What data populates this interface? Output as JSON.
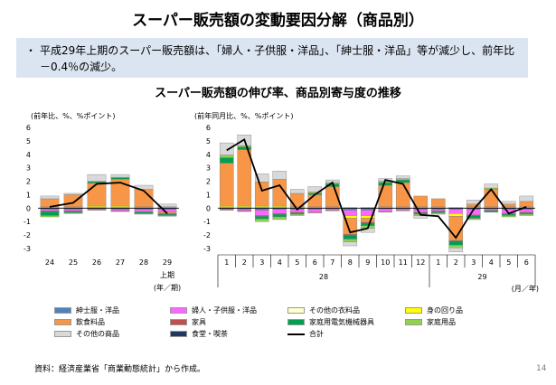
{
  "title": "スーパー販売額の変動要因分解（商品別）",
  "bullet": {
    "dot": "・",
    "text": "平成29年上期のスーパー販売額は、「婦人・子供服・洋品」、「紳士服・洋品」等が減少し、前年比－0.4％の減少。"
  },
  "subtitle": "スーパー販売額の伸び率、商品別寄与度の推移",
  "source": "資料：経済産業省「商業動態統計」から作成。",
  "page_number": "14",
  "colors": {
    "紳士服・洋品": "#4f81bd",
    "婦人・子供服・洋品": "#ff66ff",
    "その他の衣料品": "#ffffcc",
    "身の回り品": "#ffff00",
    "飲食料品": "#f79646",
    "家具": "#c0504d",
    "家庭用電気機械器具": "#00a050",
    "家庭用品": "#92d050",
    "その他の商品": "#d9d9d9",
    "食堂・喫茶": "#1f3864",
    "合計": "#000000"
  },
  "chart_data": [
    {
      "type": "bar",
      "stacked": true,
      "unit_label": "(前年比、%、%ポイント)",
      "ylim": [
        -3,
        6
      ],
      "yticks": [
        "-3",
        "-2",
        "-1",
        "0",
        "1",
        "2",
        "3",
        "4",
        "5",
        "6"
      ],
      "categories": [
        "24",
        "25",
        "26",
        "27",
        "28",
        "29"
      ],
      "x_sublabel": "上期",
      "x_unit": "(年／期)",
      "series": [
        {
          "name": "紳士服・洋品",
          "values": [
            -0.1,
            -0.1,
            -0.05,
            -0.1,
            -0.1,
            -0.1
          ]
        },
        {
          "name": "婦人・子供服・洋品",
          "values": [
            -0.1,
            -0.1,
            -0.05,
            -0.1,
            -0.15,
            -0.2
          ]
        },
        {
          "name": "その他の衣料品",
          "values": [
            0.05,
            0.05,
            0.05,
            0.05,
            0.05,
            0.05
          ]
        },
        {
          "name": "身の回り品",
          "values": [
            0.05,
            0.05,
            0.1,
            0.1,
            0.05,
            0.05
          ]
        },
        {
          "name": "飲食料品",
          "values": [
            0.6,
            0.9,
            1.7,
            2.0,
            1.3,
            -0.1
          ]
        },
        {
          "name": "家具",
          "values": [
            -0.05,
            -0.05,
            -0.05,
            -0.05,
            -0.05,
            -0.05
          ]
        },
        {
          "name": "家庭用電気機械器具",
          "values": [
            -0.3,
            -0.1,
            0.1,
            0.1,
            -0.1,
            -0.1
          ]
        },
        {
          "name": "家庭用品",
          "values": [
            -0.1,
            -0.05,
            0.05,
            0.05,
            -0.05,
            -0.05
          ]
        },
        {
          "name": "その他の商品",
          "values": [
            0.2,
            0.1,
            0.5,
            0.2,
            0.3,
            0.2
          ]
        },
        {
          "name": "食堂・喫茶",
          "values": [
            0,
            0,
            0,
            0,
            0,
            0
          ]
        }
      ],
      "total": [
        0.1,
        0.4,
        1.8,
        1.9,
        1.3,
        -0.4
      ]
    },
    {
      "type": "bar",
      "stacked": true,
      "unit_label": "(前年同月比、%、%ポイント)",
      "ylim": [
        -3,
        6
      ],
      "yticks": [
        "-3",
        "-2",
        "-1",
        "0",
        "1",
        "2",
        "3",
        "4",
        "5",
        "6"
      ],
      "categories": [
        "1",
        "2",
        "3",
        "4",
        "5",
        "6",
        "7",
        "8",
        "9",
        "10",
        "11",
        "12",
        "1",
        "2",
        "3",
        "4",
        "5",
        "6"
      ],
      "year_labels": [
        "28",
        "29"
      ],
      "x_unit": "(月／年)",
      "series": [
        {
          "name": "紳士服・洋品",
          "values": [
            -0.05,
            -0.1,
            -0.15,
            -0.1,
            -0.1,
            -0.1,
            -0.05,
            -0.15,
            -0.15,
            -0.05,
            -0.05,
            -0.1,
            -0.1,
            -0.1,
            -0.1,
            -0.05,
            -0.1,
            -0.1
          ]
        },
        {
          "name": "婦人・子供服・洋品",
          "values": [
            -0.05,
            -0.1,
            -0.4,
            -0.3,
            -0.2,
            -0.2,
            -0.1,
            -0.4,
            -0.4,
            -0.2,
            -0.1,
            -0.2,
            -0.1,
            -0.3,
            -0.4,
            -0.1,
            -0.3,
            -0.2
          ]
        },
        {
          "name": "その他の衣料品",
          "values": [
            0.05,
            0.05,
            0.05,
            0.05,
            0.05,
            0.05,
            0.05,
            0.05,
            0.05,
            0.05,
            0.05,
            0.05,
            0.05,
            0.05,
            0.05,
            0.05,
            0.05,
            0.05
          ]
        },
        {
          "name": "身の回り品",
          "values": [
            0.1,
            0.1,
            0.1,
            0.1,
            0.05,
            0.05,
            0.05,
            -0.2,
            -0.2,
            0.05,
            0.05,
            0.05,
            0.05,
            -0.2,
            0.05,
            0.05,
            0.05,
            0.05
          ]
        },
        {
          "name": "飲食料品",
          "values": [
            3.2,
            4.2,
            1.8,
            2.0,
            1.0,
            0.9,
            1.5,
            -1.2,
            -0.3,
            1.6,
            1.8,
            0.8,
            0.6,
            -1.8,
            0.2,
            1.3,
            0.2,
            0.4
          ]
        },
        {
          "name": "家具",
          "values": [
            -0.05,
            -0.05,
            -0.05,
            -0.05,
            -0.05,
            -0.05,
            -0.05,
            -0.05,
            -0.05,
            -0.05,
            -0.05,
            -0.05,
            -0.05,
            -0.05,
            -0.05,
            -0.05,
            -0.05,
            -0.05
          ]
        },
        {
          "name": "家庭用電気機械器具",
          "values": [
            0.4,
            0.2,
            -0.2,
            -0.2,
            -0.1,
            0.1,
            0.2,
            -0.3,
            -0.2,
            0.2,
            0.2,
            -0.1,
            -0.1,
            -0.3,
            -0.2,
            -0.1,
            -0.1,
            -0.1
          ]
        },
        {
          "name": "家庭用品",
          "values": [
            0.2,
            0.1,
            -0.2,
            -0.2,
            -0.1,
            0.1,
            0.1,
            -0.2,
            -0.2,
            0.1,
            0.1,
            -0.1,
            -0.1,
            -0.2,
            -0.1,
            0.1,
            -0.1,
            -0.1
          ]
        },
        {
          "name": "その他の商品",
          "values": [
            0.9,
            0.8,
            0.6,
            0.6,
            0.3,
            0.4,
            0.2,
            -0.3,
            -0.3,
            0.2,
            0.2,
            -0.2,
            0,
            -0.3,
            0.3,
            0.3,
            0.2,
            0.4
          ]
        },
        {
          "name": "食堂・喫茶",
          "values": [
            0,
            0,
            0,
            0,
            0,
            0,
            0,
            0,
            0,
            0,
            0,
            0,
            0,
            0,
            0,
            0,
            0,
            0
          ]
        }
      ],
      "total": [
        4.3,
        5.1,
        1.3,
        1.7,
        -0.1,
        1.0,
        1.9,
        -1.8,
        -1.5,
        2.1,
        1.8,
        -0.5,
        -0.6,
        -2.2,
        -0.1,
        1.4,
        -0.4,
        0.1
      ]
    }
  ],
  "legend": [
    {
      "name": "紳士服・洋品",
      "kind": "box"
    },
    {
      "name": "婦人・子供服・洋品",
      "kind": "box"
    },
    {
      "name": "その他の衣料品",
      "kind": "box"
    },
    {
      "name": "身の回り品",
      "kind": "box"
    },
    {
      "name": "飲食料品",
      "kind": "box"
    },
    {
      "name": "家具",
      "kind": "box"
    },
    {
      "name": "家庭用電気機械器具",
      "kind": "box"
    },
    {
      "name": "家庭用品",
      "kind": "box"
    },
    {
      "name": "その他の商品",
      "kind": "box"
    },
    {
      "name": "食堂・喫茶",
      "kind": "box"
    },
    {
      "name": "合計",
      "kind": "line"
    }
  ]
}
